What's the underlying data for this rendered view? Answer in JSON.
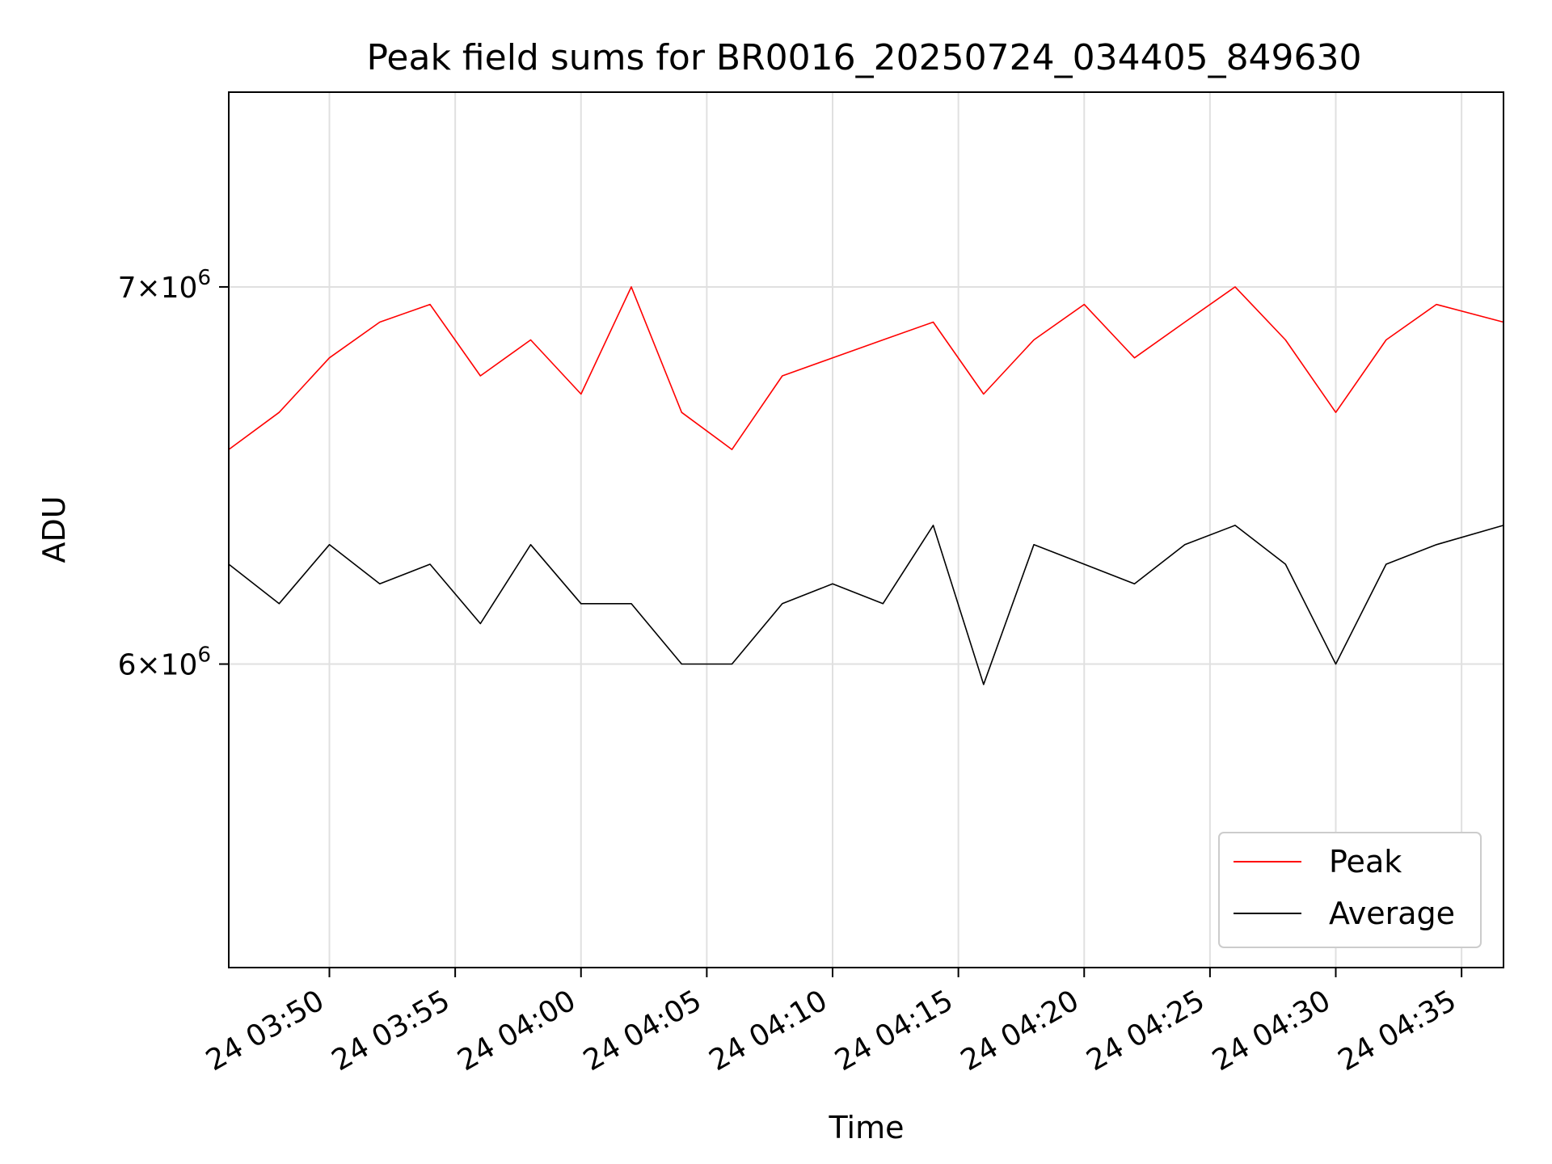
{
  "chart_data": {
    "type": "line",
    "title": "Peak field sums for BR0016_20250724_034405_849630",
    "xlabel": "Time",
    "ylabel": "ADU",
    "yscale": "log",
    "xlim": [
      "2025-07-24 03:46:00",
      "2025-07-24 04:36:40"
    ],
    "ylim": [
      5300000,
      7580000
    ],
    "x_ticks": [
      {
        "value": "2025-07-24 03:50:00",
        "label": "24 03:50"
      },
      {
        "value": "2025-07-24 03:55:00",
        "label": "24 03:55"
      },
      {
        "value": "2025-07-24 04:00:00",
        "label": "24 04:00"
      },
      {
        "value": "2025-07-24 04:05:00",
        "label": "24 04:05"
      },
      {
        "value": "2025-07-24 04:10:00",
        "label": "24 04:10"
      },
      {
        "value": "2025-07-24 04:15:00",
        "label": "24 04:15"
      },
      {
        "value": "2025-07-24 04:20:00",
        "label": "24 04:20"
      },
      {
        "value": "2025-07-24 04:25:00",
        "label": "24 04:25"
      },
      {
        "value": "2025-07-24 04:30:00",
        "label": "24 04:30"
      },
      {
        "value": "2025-07-24 04:35:00",
        "label": "24 04:35"
      }
    ],
    "y_ticks": [
      {
        "value": 6000000,
        "base": "6",
        "exp": "6"
      },
      {
        "value": 7000000,
        "base": "7",
        "exp": "6"
      }
    ],
    "grid": true,
    "legend": "lower-right",
    "series": [
      {
        "name": "Peak",
        "color": "#ff0000",
        "x": [
          "2025-07-24 03:46:00",
          "2025-07-24 03:48:00",
          "2025-07-24 03:50:00",
          "2025-07-24 03:52:00",
          "2025-07-24 03:54:00",
          "2025-07-24 03:56:00",
          "2025-07-24 03:58:00",
          "2025-07-24 04:00:00",
          "2025-07-24 04:02:00",
          "2025-07-24 04:04:00",
          "2025-07-24 04:06:00",
          "2025-07-24 04:08:00",
          "2025-07-24 04:10:00",
          "2025-07-24 04:12:00",
          "2025-07-24 04:14:00",
          "2025-07-24 04:16:00",
          "2025-07-24 04:18:00",
          "2025-07-24 04:20:00",
          "2025-07-24 04:22:00",
          "2025-07-24 04:24:00",
          "2025-07-24 04:26:00",
          "2025-07-24 04:28:00",
          "2025-07-24 04:30:00",
          "2025-07-24 04:32:00",
          "2025-07-24 04:34:00",
          "2025-07-24 04:36:40"
        ],
        "values": [
          6550000,
          6650000,
          6800000,
          6900000,
          6950000,
          6750000,
          6850000,
          6700000,
          7000000,
          6650000,
          6550000,
          6750000,
          6800000,
          6850000,
          6900000,
          6700000,
          6850000,
          6950000,
          6800000,
          6900000,
          7000000,
          6850000,
          6650000,
          6850000,
          6950000,
          6900000
        ]
      },
      {
        "name": "Average",
        "color": "#000000",
        "x": [
          "2025-07-24 03:46:00",
          "2025-07-24 03:48:00",
          "2025-07-24 03:50:00",
          "2025-07-24 03:52:00",
          "2025-07-24 03:54:00",
          "2025-07-24 03:56:00",
          "2025-07-24 03:58:00",
          "2025-07-24 04:00:00",
          "2025-07-24 04:02:00",
          "2025-07-24 04:04:00",
          "2025-07-24 04:06:00",
          "2025-07-24 04:08:00",
          "2025-07-24 04:10:00",
          "2025-07-24 04:12:00",
          "2025-07-24 04:14:00",
          "2025-07-24 04:16:00",
          "2025-07-24 04:18:00",
          "2025-07-24 04:20:00",
          "2025-07-24 04:22:00",
          "2025-07-24 04:24:00",
          "2025-07-24 04:26:00",
          "2025-07-24 04:28:00",
          "2025-07-24 04:30:00",
          "2025-07-24 04:32:00",
          "2025-07-24 04:34:00",
          "2025-07-24 04:36:40"
        ],
        "values": [
          6250000,
          6150000,
          6300000,
          6200000,
          6250000,
          6100000,
          6300000,
          6150000,
          6150000,
          6000000,
          6000000,
          6150000,
          6200000,
          6150000,
          6350000,
          5950000,
          6300000,
          6250000,
          6200000,
          6300000,
          6350000,
          6250000,
          6000000,
          6250000,
          6300000,
          6350000
        ]
      }
    ]
  }
}
